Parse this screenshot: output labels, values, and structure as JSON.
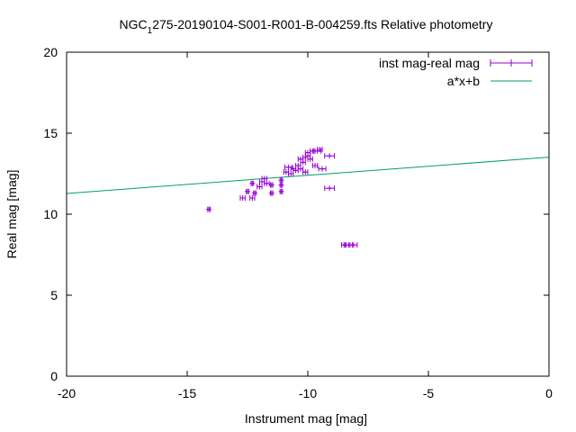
{
  "chart_data": {
    "type": "scatter",
    "title_prefix": "NGC",
    "title_sub": "1",
    "title_rest": "275-20190104-S001-R001-B-004259.fts Relative photometry",
    "xlabel": "Instrument mag [mag]",
    "ylabel": "Real mag [mag]",
    "xlim": [
      -20,
      0
    ],
    "ylim": [
      0,
      20
    ],
    "xticks": [
      "-20",
      "-15",
      "-10",
      "-5",
      "0"
    ],
    "xtick_values": [
      -20,
      -15,
      -10,
      -5,
      0
    ],
    "yticks": [
      "0",
      "5",
      "10",
      "15",
      "20"
    ],
    "ytick_values": [
      0,
      5,
      10,
      15,
      20
    ],
    "grid": false,
    "legend_position": "top-right",
    "series": [
      {
        "name": "inst mag-real mag",
        "color": "#9400d3",
        "points": [
          [
            -14.1,
            10.3,
            0.05
          ],
          [
            -12.7,
            11.0,
            0.1
          ],
          [
            -12.5,
            11.4,
            0.05
          ],
          [
            -12.3,
            11.0,
            0.1
          ],
          [
            -12.2,
            11.3,
            0.05
          ],
          [
            -12.3,
            11.9,
            0.05
          ],
          [
            -12.0,
            11.7,
            0.1
          ],
          [
            -11.9,
            12.0,
            0.1
          ],
          [
            -11.8,
            12.2,
            0.1
          ],
          [
            -11.7,
            11.9,
            0.1
          ],
          [
            -11.5,
            11.8,
            0.05
          ],
          [
            -11.5,
            11.3,
            0.05
          ],
          [
            -11.1,
            11.4,
            0.05
          ],
          [
            -11.1,
            11.8,
            0.05
          ],
          [
            -11.1,
            12.1,
            0.05
          ],
          [
            -10.9,
            12.6,
            0.1
          ],
          [
            -10.8,
            12.9,
            0.15
          ],
          [
            -10.7,
            12.5,
            0.1
          ],
          [
            -10.6,
            12.8,
            0.1
          ],
          [
            -10.5,
            12.7,
            0.1
          ],
          [
            -10.4,
            13.0,
            0.1
          ],
          [
            -10.3,
            12.8,
            0.1
          ],
          [
            -10.3,
            13.4,
            0.1
          ],
          [
            -10.2,
            13.2,
            0.1
          ],
          [
            -10.1,
            13.5,
            0.1
          ],
          [
            -10.1,
            12.6,
            0.1
          ],
          [
            -10.0,
            13.6,
            0.1
          ],
          [
            -10.0,
            13.8,
            0.1
          ],
          [
            -9.9,
            13.4,
            0.1
          ],
          [
            -9.8,
            13.9,
            0.1
          ],
          [
            -9.7,
            13.0,
            0.1
          ],
          [
            -9.6,
            13.9,
            0.15
          ],
          [
            -9.5,
            14.0,
            0.1
          ],
          [
            -9.4,
            12.8,
            0.15
          ],
          [
            -9.1,
            13.6,
            0.2
          ],
          [
            -9.1,
            11.6,
            0.2
          ],
          [
            -8.5,
            8.1,
            0.1
          ],
          [
            -8.3,
            8.1,
            0.15
          ],
          [
            -8.1,
            8.1,
            0.15
          ]
        ]
      },
      {
        "name": "a*x+b",
        "color": "#009e73",
        "slope": 0.112,
        "intercept": 13.52
      }
    ]
  }
}
